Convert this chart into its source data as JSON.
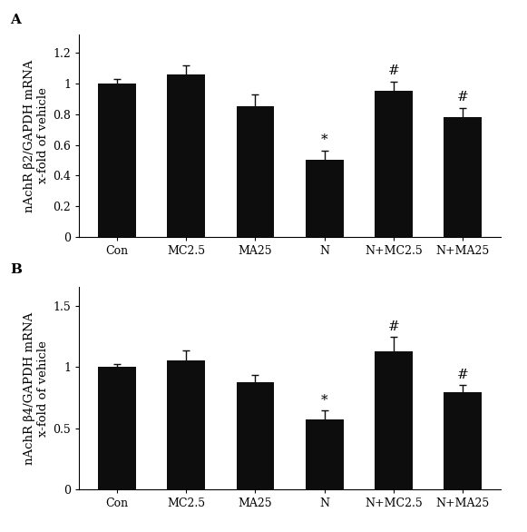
{
  "panel_A": {
    "title": "A",
    "ylabel": "nAchR β2/GAPDH mRNA\nx-fold of vehicle",
    "categories": [
      "Con",
      "MC2.5",
      "MA25",
      "N",
      "N+MC2.5",
      "N+MA25"
    ],
    "values": [
      1.0,
      1.06,
      0.855,
      0.505,
      0.955,
      0.78
    ],
    "errors": [
      0.03,
      0.06,
      0.075,
      0.055,
      0.055,
      0.06
    ],
    "ylim": [
      0,
      1.32
    ],
    "yticks": [
      0,
      0.2,
      0.4,
      0.6,
      0.8,
      1.0,
      1.2
    ],
    "bar_color": "#0d0d0d",
    "error_color": "#0d0d0d",
    "annotations": {
      "3": "*",
      "4": "#",
      "5": "#"
    },
    "annot_offsets": {
      "3": 0.03,
      "4": 0.03,
      "5": 0.03
    }
  },
  "panel_B": {
    "title": "B",
    "ylabel": "nAchR β4/GAPDH mRNA\nx-fold of vehicle",
    "categories": [
      "Con",
      "MC2.5",
      "MA25",
      "N",
      "N+MC2.5",
      "N+MA25"
    ],
    "values": [
      1.0,
      1.055,
      0.875,
      0.575,
      1.13,
      0.795
    ],
    "errors": [
      0.025,
      0.08,
      0.06,
      0.07,
      0.115,
      0.055
    ],
    "ylim": [
      0,
      1.65
    ],
    "yticks": [
      0,
      0.5,
      1.0,
      1.5
    ],
    "bar_color": "#0d0d0d",
    "error_color": "#0d0d0d",
    "annotations": {
      "3": "*",
      "4": "#",
      "5": "#"
    },
    "annot_offsets": {
      "3": 0.03,
      "4": 0.03,
      "5": 0.03
    }
  },
  "figure_bg": "#ffffff",
  "bar_width": 0.55,
  "label_fontsize": 9.5,
  "tick_fontsize": 9,
  "panel_label_fontsize": 11,
  "annot_fontsize": 11
}
